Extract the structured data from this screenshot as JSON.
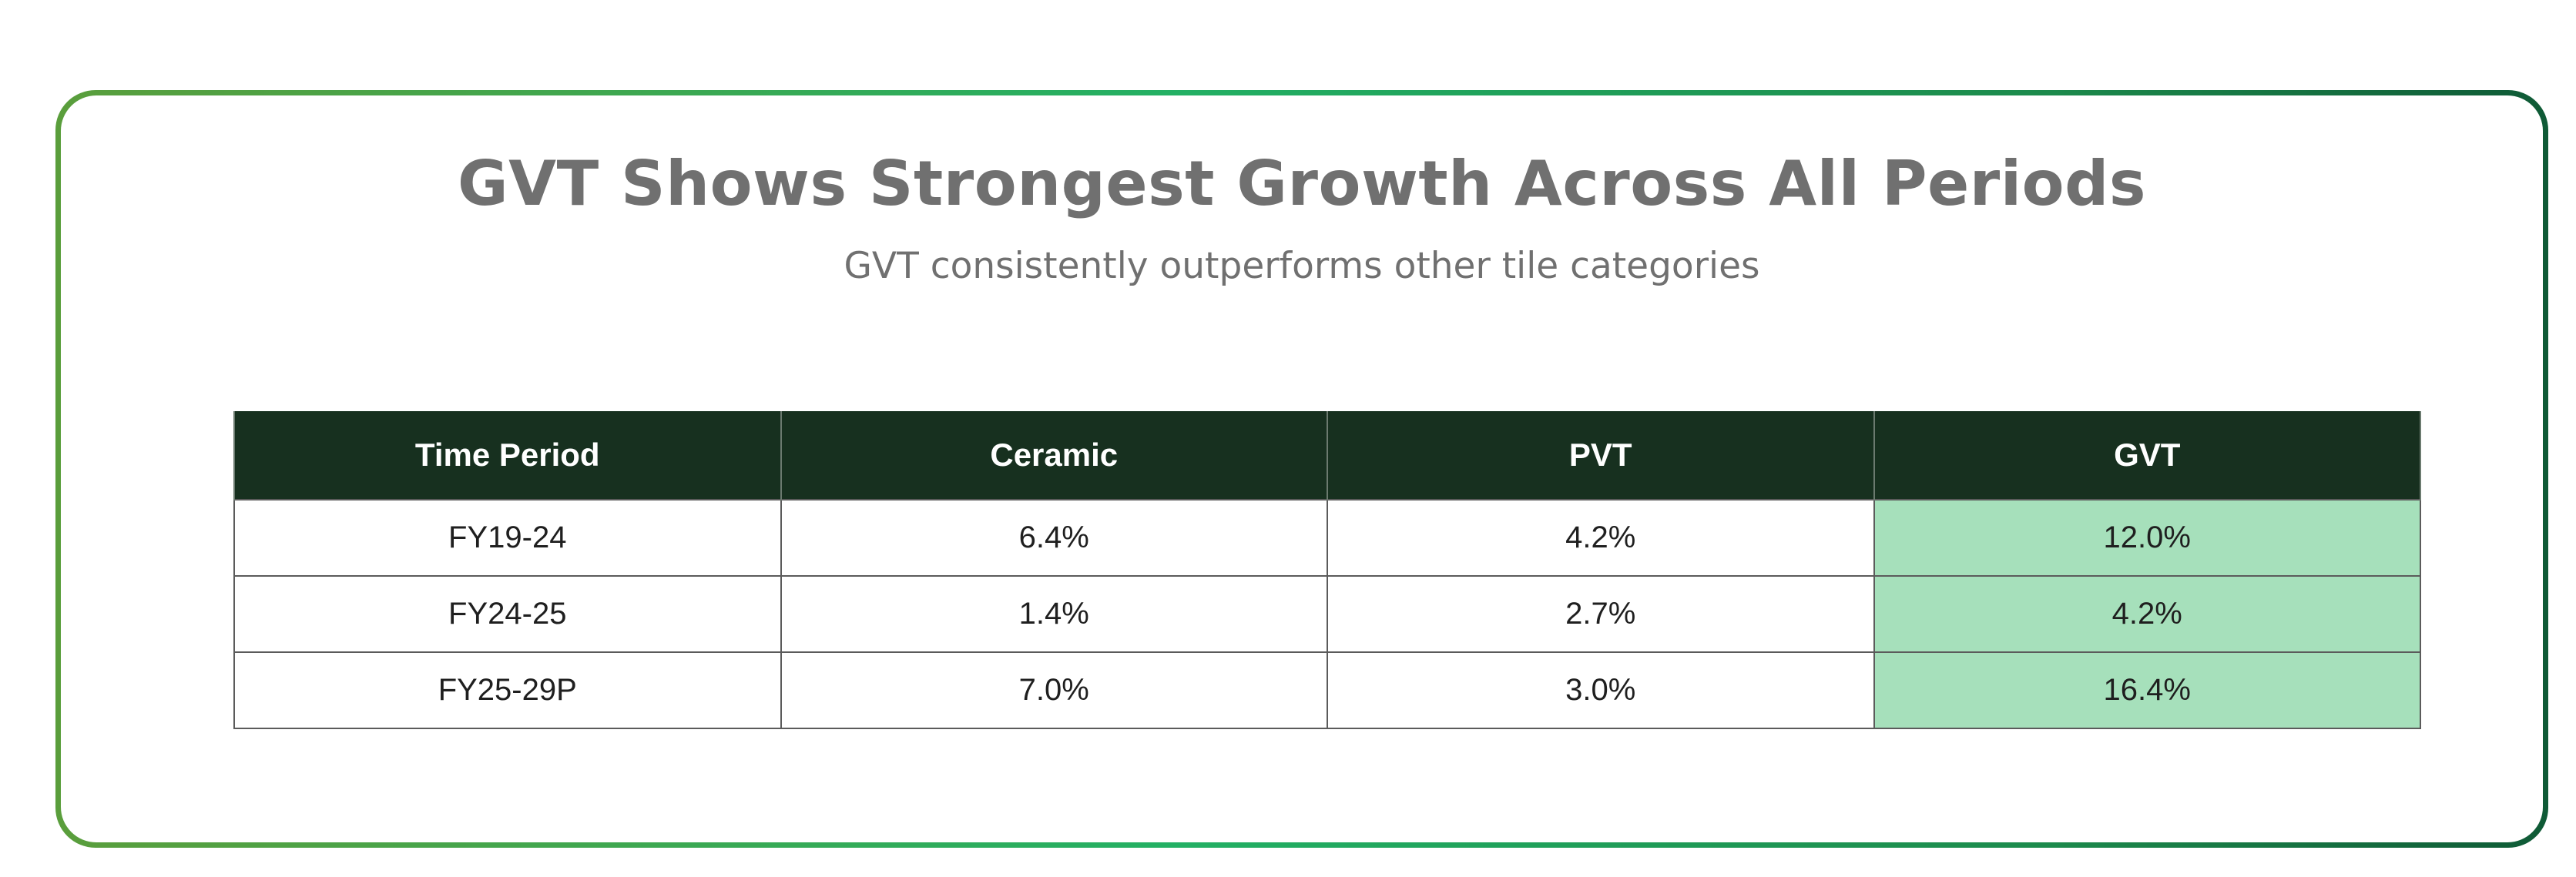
{
  "colors": {
    "header_bg": "#17301f",
    "highlight": "#a6e0bb",
    "title": "#707070"
  },
  "chart_data": {
    "type": "table",
    "title": "GVT Shows Strongest Growth Across All Periods",
    "subtitle": "GVT consistently outperforms other tile categories",
    "columns": [
      "Time Period",
      "Ceramic",
      "PVT",
      "GVT"
    ],
    "highlighted_column": "GVT",
    "rows": [
      {
        "period": "FY19-24",
        "values": [
          "6.4%",
          "4.2%",
          "12.0%"
        ]
      },
      {
        "period": "FY24-25",
        "values": [
          "1.4%",
          "2.7%",
          "4.2%"
        ]
      },
      {
        "period": "FY25-29P",
        "values": [
          "7.0%",
          "3.0%",
          "16.4%"
        ]
      }
    ]
  }
}
